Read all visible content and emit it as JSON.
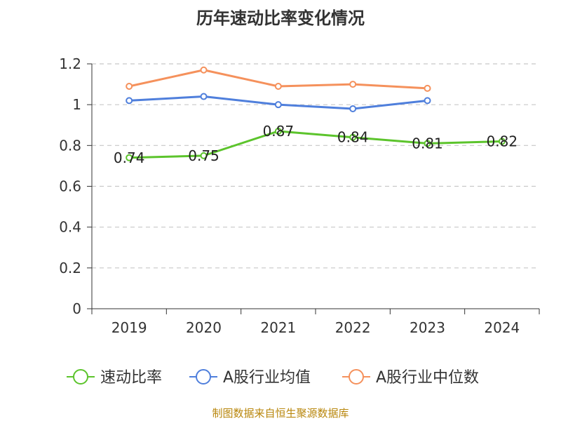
{
  "chart_data": {
    "type": "line",
    "title": "历年速动比率变化情况",
    "categories": [
      "2019",
      "2020",
      "2021",
      "2022",
      "2023",
      "2024"
    ],
    "ylim": [
      0,
      1.2
    ],
    "yticks": [
      "0",
      "0.2",
      "0.4",
      "0.6",
      "0.8",
      "1",
      "1.2"
    ],
    "grid": true,
    "legend_position": "bottom",
    "series": [
      {
        "name": "速动比率",
        "color": "#5cc42c",
        "values": [
          0.74,
          0.75,
          0.87,
          0.84,
          0.81,
          0.82
        ],
        "data_labels": [
          "0.74",
          "0.75",
          "0.87",
          "0.84",
          "0.81",
          "0.82"
        ]
      },
      {
        "name": "A股行业均值",
        "color": "#4f7fdc",
        "values": [
          1.02,
          1.04,
          1.0,
          0.98,
          1.02,
          null
        ]
      },
      {
        "name": "A股行业中位数",
        "color": "#f5915c",
        "values": [
          1.09,
          1.17,
          1.09,
          1.1,
          1.08,
          null
        ]
      }
    ]
  },
  "footer": "制图数据来自恒生聚源数据库"
}
